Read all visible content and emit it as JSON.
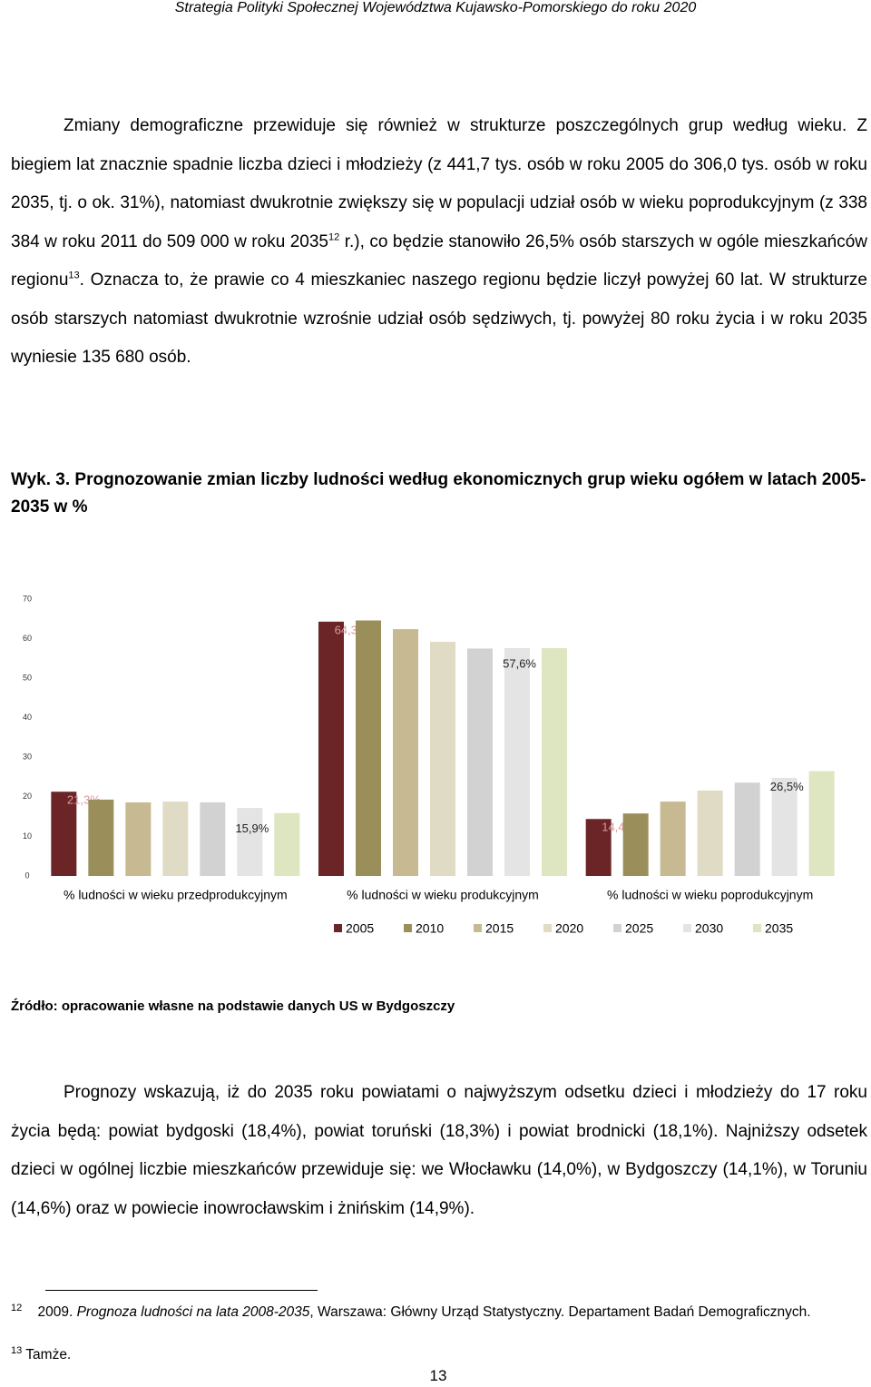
{
  "header": "Strategia Polityki Społecznej Województwa Kujawsko-Pomorskiego do roku 2020",
  "paragraph1": [
    "Zmiany demograficzne przewiduje się również w strukturze poszczególnych grup według wieku. Z biegiem lat znacznie spadnie liczba dzieci i młodzieży (z 441,7 tys. osób w roku 2005 do 306,0 tys. osób w roku 2035, tj. o ok. 31%), natomiast dwukrotnie zwiększy się w populacji udział osób w wieku poprodukcyjnym (z 338 384 w roku 2011 do 509 000 w roku  2035",
    "12",
    " r.), co będzie stanowiło 26,5% osób starszych w ogóle mieszkańców regionu",
    "13",
    ". Oznacza to, że prawie co 4 mieszkaniec naszego regionu będzie liczył powyżej 60 lat. W strukturze osób starszych natomiast dwukrotnie wzrośnie udział osób sędziwych, tj. powyżej 80 roku życia i w roku 2035 wyniesie 135 680 osób."
  ],
  "figure_caption": "Wyk. 3. Prognozowanie zmian liczby ludności według ekonomicznych grup wieku ogółem w  latach 2005-2035 w %",
  "chart_data": {
    "type": "bar",
    "categories": [
      "% ludności w wieku przedprodukcyjnym",
      "% ludności w wieku produkcyjnym",
      "% ludności w wieku poprodukcyjnym"
    ],
    "series": [
      {
        "name": "2005",
        "color": "#6b2527",
        "values": [
          21.3,
          64.3,
          14.4
        ],
        "value_labels": [
          "21,3%",
          "64,3%",
          "14,4%"
        ]
      },
      {
        "name": "2010",
        "color": "#9a8f5a",
        "values": [
          19.3,
          64.6,
          15.8
        ]
      },
      {
        "name": "2015",
        "color": "#c7b991",
        "values": [
          18.6,
          62.4,
          18.8
        ]
      },
      {
        "name": "2020",
        "color": "#e0dbc4",
        "values": [
          18.8,
          59.2,
          21.6
        ]
      },
      {
        "name": "2025",
        "color": "#d2d2d2",
        "values": [
          18.6,
          57.5,
          23.6
        ]
      },
      {
        "name": "2030",
        "color": "#e4e4e4",
        "values": [
          17.2,
          57.6,
          24.8
        ]
      },
      {
        "name": "2035",
        "color": "#dde6c0",
        "values": [
          15.9,
          57.6,
          26.5
        ],
        "value_labels": [
          "15,9%",
          "57,6%",
          "26,5%"
        ]
      }
    ],
    "ylim": [
      0,
      70
    ],
    "yticks": [
      0,
      10,
      20,
      30,
      40,
      50,
      60,
      70
    ],
    "grid": false,
    "legend": "bottom"
  },
  "source": "Źródło: opracowanie własne na podstawie danych US w Bydgoszczy",
  "paragraph2": "Prognozy wskazują, iż do 2035 roku powiatami o najwyższym odsetku dzieci i młodzieży do 17 roku życia będą: powiat bydgoski (18,4%), powiat toruński (18,3%) i powiat brodnicki (18,1%). Najniższy odsetek dzieci w ogólnej liczbie mieszkańców przewiduje się: we Włocławku (14,0%), w Bydgoszczy (14,1%), w Toruniu (14,6%) oraz w powiecie inowrocławskim i żnińskim (14,9%).",
  "footnotes": [
    {
      "mark": "12",
      "parts": [
        "2009. ",
        "Prognoza ludności na lata 2008-2035",
        ", Warszawa: Główny Urząd Statystyczny. Departament Badań Demograficznych."
      ]
    },
    {
      "mark": "13",
      "parts": [
        "Tamże."
      ]
    }
  ],
  "page_number": "13"
}
